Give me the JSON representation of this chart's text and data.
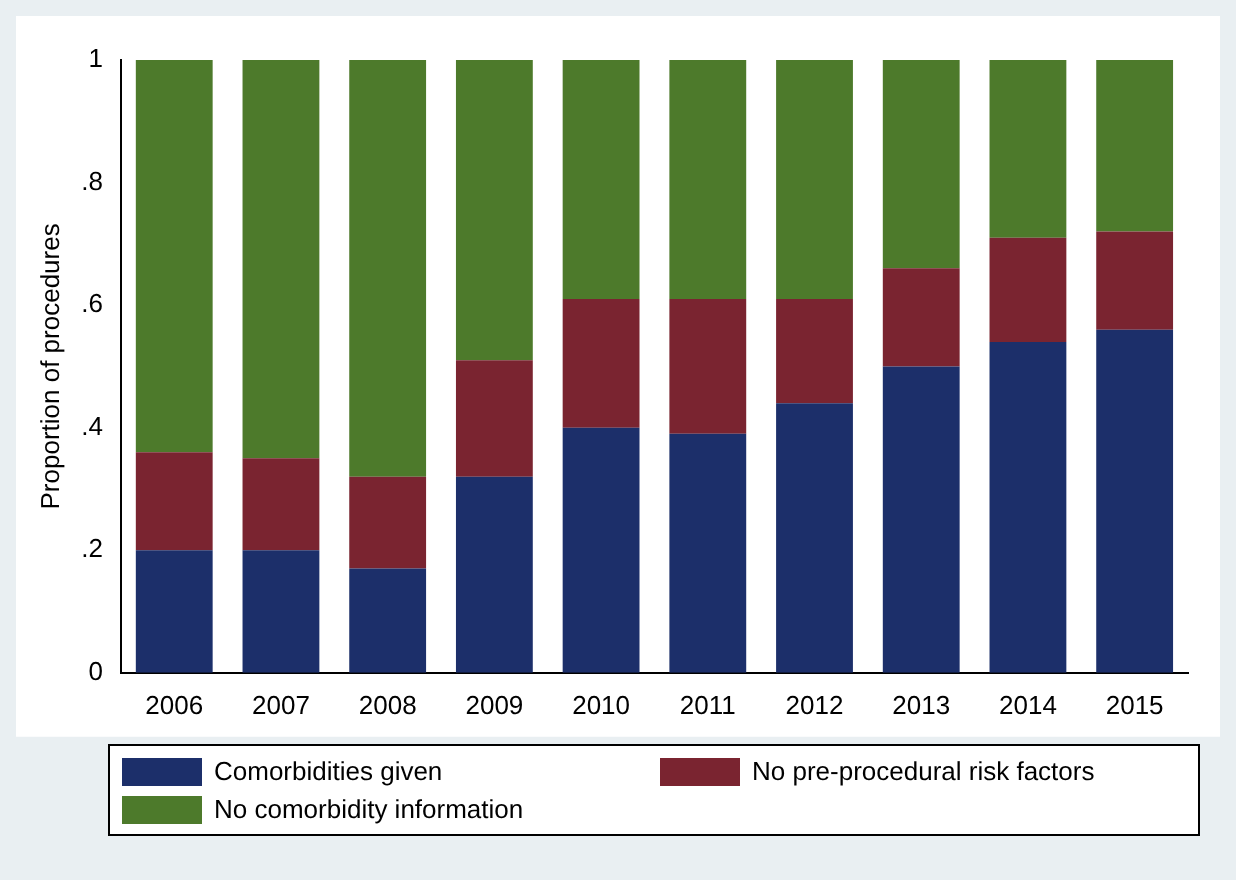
{
  "chart_data": {
    "type": "bar",
    "stacked": true,
    "ylabel": "Proportion of procedures",
    "categories": [
      "2006",
      "2007",
      "2008",
      "2009",
      "2010",
      "2011",
      "2012",
      "2013",
      "2014",
      "2015"
    ],
    "series": [
      {
        "name": "Comorbidities given",
        "color": "#1c2f6a",
        "values": [
          0.2,
          0.2,
          0.17,
          0.32,
          0.4,
          0.39,
          0.44,
          0.5,
          0.54,
          0.56
        ]
      },
      {
        "name": "No pre-procedural risk factors",
        "color": "#7a2430",
        "values": [
          0.16,
          0.15,
          0.15,
          0.19,
          0.21,
          0.22,
          0.17,
          0.16,
          0.17,
          0.16
        ]
      },
      {
        "name": "No comorbidity information",
        "color": "#4d7a2b",
        "values": [
          0.64,
          0.65,
          0.68,
          0.49,
          0.39,
          0.39,
          0.39,
          0.34,
          0.29,
          0.28
        ]
      }
    ],
    "ylim": [
      0,
      1
    ],
    "yticks": [
      {
        "value": 0,
        "label": "0"
      },
      {
        "value": 0.2,
        "label": ".2"
      },
      {
        "value": 0.4,
        "label": ".4"
      },
      {
        "value": 0.6,
        "label": ".6"
      },
      {
        "value": 0.8,
        "label": ".8"
      },
      {
        "value": 1,
        "label": "1"
      }
    ],
    "grid": false,
    "legend": "bottom"
  }
}
